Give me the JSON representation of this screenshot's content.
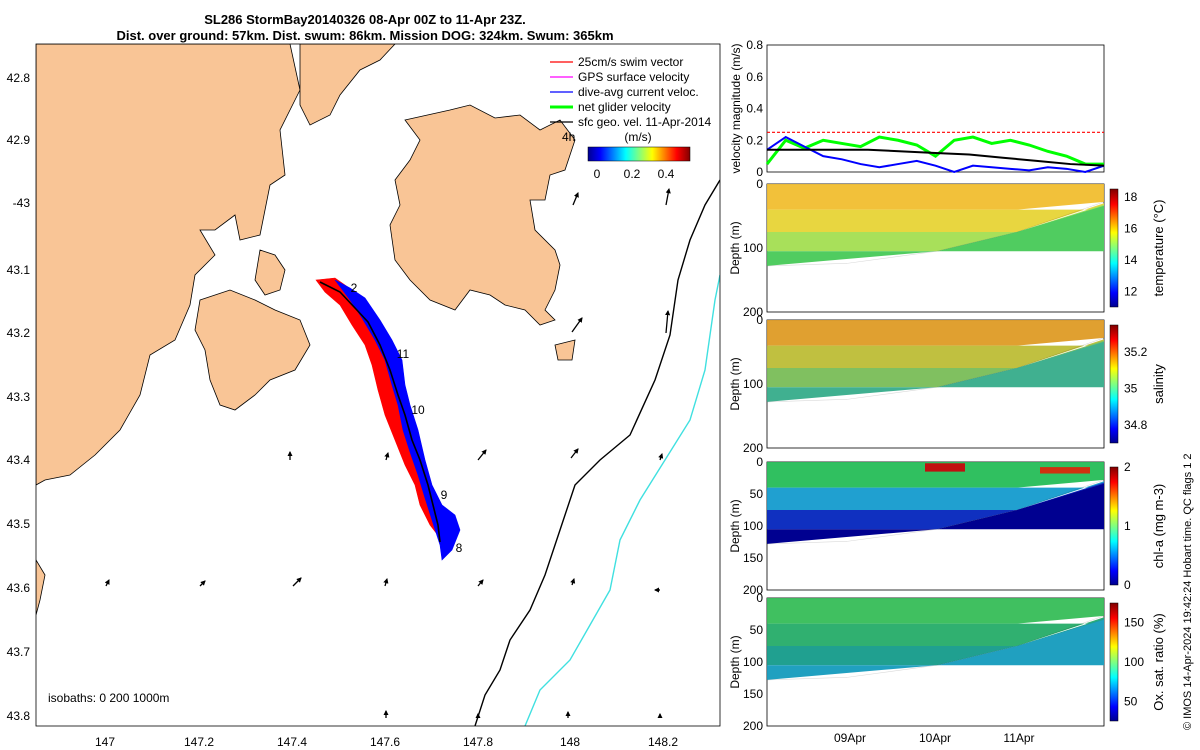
{
  "title": {
    "line1": "SL286 StormBay20140326 08-Apr 00Z to 11-Apr 23Z.",
    "line2": "Dist. over ground: 57km. Dist. swum: 86km. Mission DOG: 324km. Swum: 365km"
  },
  "map": {
    "lon_ticks": [
      "147",
      "147.2",
      "147.4",
      "147.6",
      "147.8",
      "148",
      "148.2"
    ],
    "lat_ticks": [
      "42.8",
      "42.9",
      "-43",
      "43.1",
      "43.2",
      "43.3",
      "43.4",
      "43.5",
      "43.6",
      "43.7",
      "43.8"
    ],
    "legend": [
      {
        "label": "25cm/s swim vector",
        "color": "#ff0000"
      },
      {
        "label": "GPS surface velocity",
        "color": "#ff00ff"
      },
      {
        "label": "dive-avg current veloc.",
        "color": "#0000ff"
      },
      {
        "label": "net glider velocity",
        "color": "#00ff00"
      },
      {
        "label": "sfc geo. vel. 11-Apr-2014",
        "color": "#000000"
      }
    ],
    "legend_extra": "4h",
    "colorbar_title": "(m/s)",
    "colorbar_ticks": [
      "0",
      "0.2",
      "0.4"
    ],
    "isobaths_label": "isobaths: 0   200  1000m",
    "day_labels": [
      "2",
      "11",
      "10",
      "9",
      "8"
    ],
    "colors": {
      "land": "#f9c596",
      "track_red": "#ff0000",
      "track_blue": "#0000ff",
      "isobath_200": "#000000",
      "isobath_1000": "#40e0e0"
    },
    "icons": [
      "arrow-icon"
    ]
  },
  "chart_data": [
    {
      "type": "line",
      "ylabel": "velocity magnitude (m/s)",
      "ylim": [
        0,
        0.8
      ],
      "y_ticks": [
        "0",
        "0.2",
        "0.4",
        "0.6",
        "0.8"
      ],
      "series": [
        {
          "color": "#ff0000",
          "values": [
            0.25,
            0.25
          ]
        },
        {
          "color": "#00ff00",
          "values": [
            0.05,
            0.2,
            0.15,
            0.2,
            0.18,
            0.16,
            0.22,
            0.2,
            0.17,
            0.1,
            0.2,
            0.22,
            0.18,
            0.2,
            0.17,
            0.13,
            0.1,
            0.05,
            0.05
          ]
        },
        {
          "color": "#0000ff",
          "values": [
            0.14,
            0.22,
            0.16,
            0.1,
            0.08,
            0.05,
            0.03,
            0.05,
            0.07,
            0.04,
            0.0,
            0.04,
            0.03,
            0.02,
            0.01,
            0.03,
            0.02,
            0.0,
            0.04
          ]
        },
        {
          "color": "#000000",
          "values": [
            0.14,
            0.14,
            0.14,
            0.14,
            0.13,
            0.12,
            0.11,
            0.09,
            0.07,
            0.05,
            0.04
          ]
        }
      ]
    },
    {
      "type": "heatmap",
      "ylabel": "Depth (m)",
      "colorbar_label": "temperature (°C)",
      "colorbar_ticks": [
        "12",
        "14",
        "16",
        "18"
      ],
      "colorbar_range": [
        11,
        18.5
      ],
      "y_ticks": [
        "0",
        "100",
        "200"
      ]
    },
    {
      "type": "heatmap",
      "ylabel": "Depth (m)",
      "colorbar_label": "salinity",
      "colorbar_ticks": [
        "34.8",
        "35",
        "35.2"
      ],
      "colorbar_range": [
        34.7,
        35.35
      ],
      "y_ticks": [
        "0",
        "100",
        "200"
      ]
    },
    {
      "type": "heatmap",
      "ylabel": "Depth (m)",
      "colorbar_label": "chl-a (mg m-3)",
      "colorbar_ticks": [
        "0",
        "1",
        "2"
      ],
      "colorbar_range": [
        0,
        2
      ],
      "y_ticks": [
        "0",
        "50",
        "100",
        "150",
        "200"
      ]
    },
    {
      "type": "heatmap",
      "ylabel": "Depth (m)",
      "colorbar_label": "Ox. sat. ratio (%)",
      "colorbar_ticks": [
        "50",
        "100",
        "150"
      ],
      "colorbar_range": [
        25,
        175
      ],
      "y_ticks": [
        "0",
        "50",
        "100",
        "150",
        "200"
      ]
    }
  ],
  "time_axis": {
    "ticks": [
      "09Apr",
      "10Apr",
      "11Apr"
    ]
  },
  "credit": "© IMOS 14-Apr-2024 19:42:24 Hobart time. QC flags 1  2"
}
